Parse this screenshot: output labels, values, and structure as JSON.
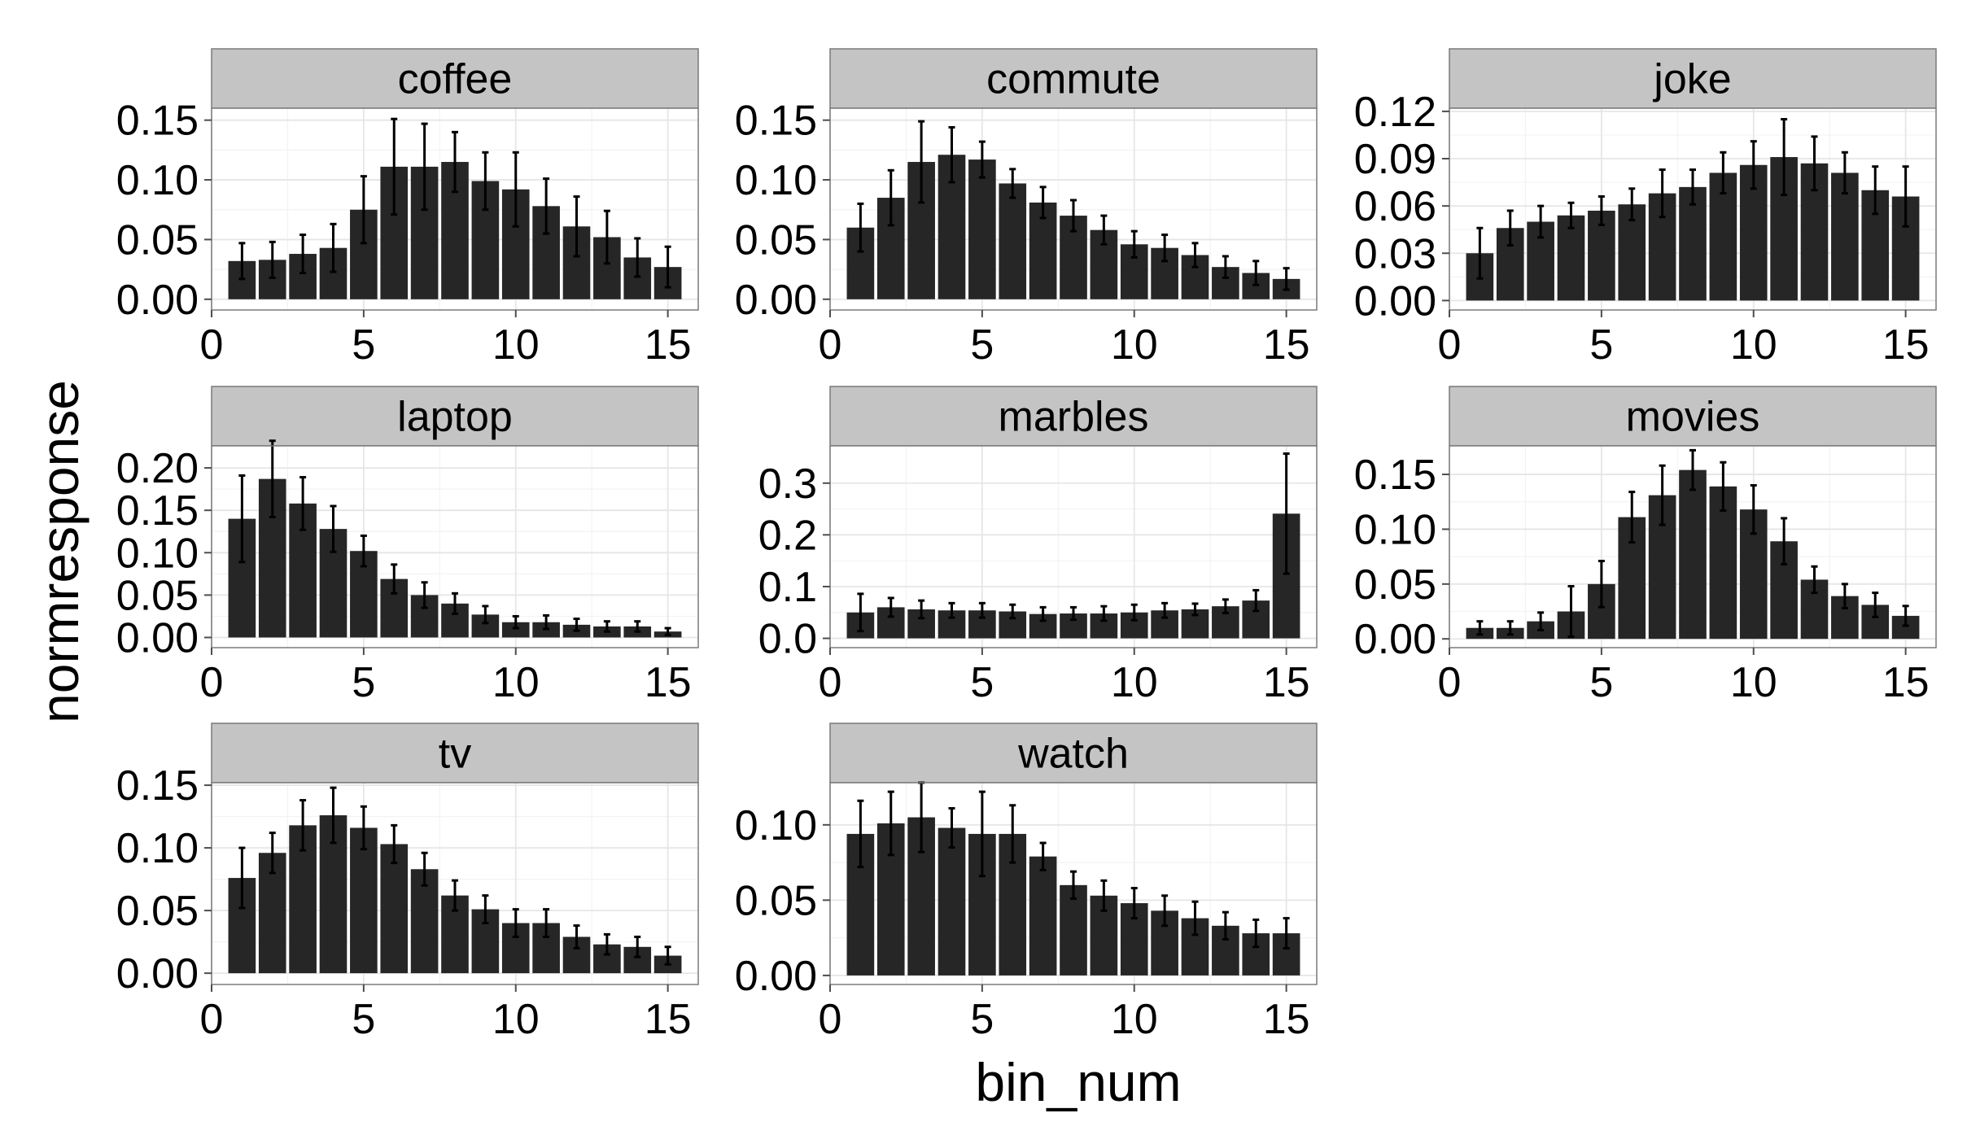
{
  "chart_data": {
    "type": "bar",
    "layout": "facet-grid",
    "xlabel": "bin_num",
    "ylabel": "normresponse",
    "xlim": [
      0,
      16
    ],
    "xticks": [
      0,
      5,
      10,
      15
    ],
    "bin_nums": [
      1,
      2,
      3,
      4,
      5,
      6,
      7,
      8,
      9,
      10,
      11,
      12,
      13,
      14,
      15
    ],
    "colors": {
      "bar": "#262626",
      "error": "#000000",
      "strip": "#c4c4c4",
      "grid_major": "#e6e6e6",
      "grid_minor": "#f3f3f3",
      "border": "#7a7a7a",
      "tick_text": "#000000"
    },
    "panels": [
      {
        "title": "coffee",
        "ylim": [
          -0.009,
          0.16
        ],
        "yticks": [
          "0.00",
          "0.05",
          "0.10",
          "0.15"
        ],
        "ytick_values": [
          0,
          0.05,
          0.1,
          0.15
        ],
        "values": [
          0.032,
          0.033,
          0.038,
          0.043,
          0.075,
          0.111,
          0.111,
          0.115,
          0.099,
          0.092,
          0.078,
          0.061,
          0.052,
          0.035,
          0.027
        ],
        "errors": [
          0.015,
          0.015,
          0.016,
          0.02,
          0.028,
          0.04,
          0.036,
          0.025,
          0.024,
          0.031,
          0.023,
          0.025,
          0.022,
          0.016,
          0.017
        ]
      },
      {
        "title": "commute",
        "ylim": [
          -0.009,
          0.16
        ],
        "yticks": [
          "0.00",
          "0.05",
          "0.10",
          "0.15"
        ],
        "ytick_values": [
          0,
          0.05,
          0.1,
          0.15
        ],
        "values": [
          0.06,
          0.085,
          0.115,
          0.121,
          0.117,
          0.097,
          0.081,
          0.07,
          0.058,
          0.046,
          0.043,
          0.037,
          0.027,
          0.022,
          0.017
        ],
        "errors": [
          0.02,
          0.023,
          0.034,
          0.023,
          0.015,
          0.012,
          0.013,
          0.013,
          0.012,
          0.011,
          0.011,
          0.01,
          0.009,
          0.01,
          0.009
        ]
      },
      {
        "title": "joke",
        "ylim": [
          -0.006,
          0.122
        ],
        "yticks": [
          "0.00",
          "0.03",
          "0.06",
          "0.09",
          "0.12"
        ],
        "ytick_values": [
          0,
          0.03,
          0.06,
          0.09,
          0.12
        ],
        "values": [
          0.03,
          0.046,
          0.05,
          0.054,
          0.057,
          0.061,
          0.068,
          0.072,
          0.081,
          0.086,
          0.091,
          0.087,
          0.081,
          0.07,
          0.066
        ],
        "errors": [
          0.016,
          0.011,
          0.01,
          0.008,
          0.009,
          0.01,
          0.015,
          0.011,
          0.013,
          0.015,
          0.024,
          0.017,
          0.013,
          0.015,
          0.019
        ]
      },
      {
        "title": "laptop",
        "ylim": [
          -0.012,
          0.226
        ],
        "yticks": [
          "0.00",
          "0.05",
          "0.10",
          "0.15",
          "0.20"
        ],
        "ytick_values": [
          0,
          0.05,
          0.1,
          0.15,
          0.2
        ],
        "values": [
          0.14,
          0.187,
          0.158,
          0.128,
          0.102,
          0.069,
          0.05,
          0.04,
          0.027,
          0.018,
          0.018,
          0.015,
          0.013,
          0.013,
          0.007
        ],
        "errors": [
          0.051,
          0.045,
          0.031,
          0.027,
          0.018,
          0.017,
          0.015,
          0.012,
          0.01,
          0.007,
          0.008,
          0.007,
          0.006,
          0.006,
          0.004
        ]
      },
      {
        "title": "marbles",
        "ylim": [
          -0.018,
          0.372
        ],
        "yticks": [
          "0.0",
          "0.1",
          "0.2",
          "0.3"
        ],
        "ytick_values": [
          0,
          0.1,
          0.2,
          0.3
        ],
        "values": [
          0.05,
          0.06,
          0.056,
          0.054,
          0.054,
          0.052,
          0.047,
          0.048,
          0.048,
          0.05,
          0.054,
          0.056,
          0.062,
          0.073,
          0.241
        ],
        "errors": [
          0.036,
          0.018,
          0.017,
          0.014,
          0.014,
          0.013,
          0.013,
          0.012,
          0.014,
          0.015,
          0.014,
          0.011,
          0.013,
          0.02,
          0.116
        ]
      },
      {
        "title": "movies",
        "ylim": [
          -0.008,
          0.176
        ],
        "yticks": [
          "0.00",
          "0.05",
          "0.10",
          "0.15"
        ],
        "ytick_values": [
          0,
          0.05,
          0.1,
          0.15
        ],
        "values": [
          0.01,
          0.01,
          0.016,
          0.025,
          0.05,
          0.111,
          0.131,
          0.154,
          0.139,
          0.118,
          0.089,
          0.054,
          0.039,
          0.031,
          0.021
        ],
        "errors": [
          0.006,
          0.006,
          0.008,
          0.023,
          0.021,
          0.023,
          0.027,
          0.018,
          0.022,
          0.022,
          0.021,
          0.012,
          0.011,
          0.011,
          0.009
        ]
      },
      {
        "title": "tv",
        "ylim": [
          -0.009,
          0.152
        ],
        "yticks": [
          "0.00",
          "0.05",
          "0.10",
          "0.15"
        ],
        "ytick_values": [
          0,
          0.05,
          0.1,
          0.15
        ],
        "values": [
          0.076,
          0.096,
          0.118,
          0.126,
          0.116,
          0.103,
          0.083,
          0.062,
          0.051,
          0.04,
          0.04,
          0.029,
          0.023,
          0.021,
          0.014
        ],
        "errors": [
          0.024,
          0.016,
          0.02,
          0.022,
          0.017,
          0.015,
          0.013,
          0.012,
          0.011,
          0.011,
          0.011,
          0.009,
          0.008,
          0.008,
          0.007
        ]
      },
      {
        "title": "watch",
        "ylim": [
          -0.006,
          0.128
        ],
        "yticks": [
          "0.00",
          "0.05",
          "0.10"
        ],
        "ytick_values": [
          0,
          0.05,
          0.1
        ],
        "values": [
          0.094,
          0.101,
          0.105,
          0.098,
          0.094,
          0.094,
          0.079,
          0.06,
          0.053,
          0.048,
          0.043,
          0.038,
          0.033,
          0.028,
          0.028
        ],
        "errors": [
          0.022,
          0.021,
          0.023,
          0.013,
          0.028,
          0.019,
          0.009,
          0.009,
          0.01,
          0.01,
          0.01,
          0.011,
          0.009,
          0.009,
          0.01
        ]
      }
    ]
  }
}
